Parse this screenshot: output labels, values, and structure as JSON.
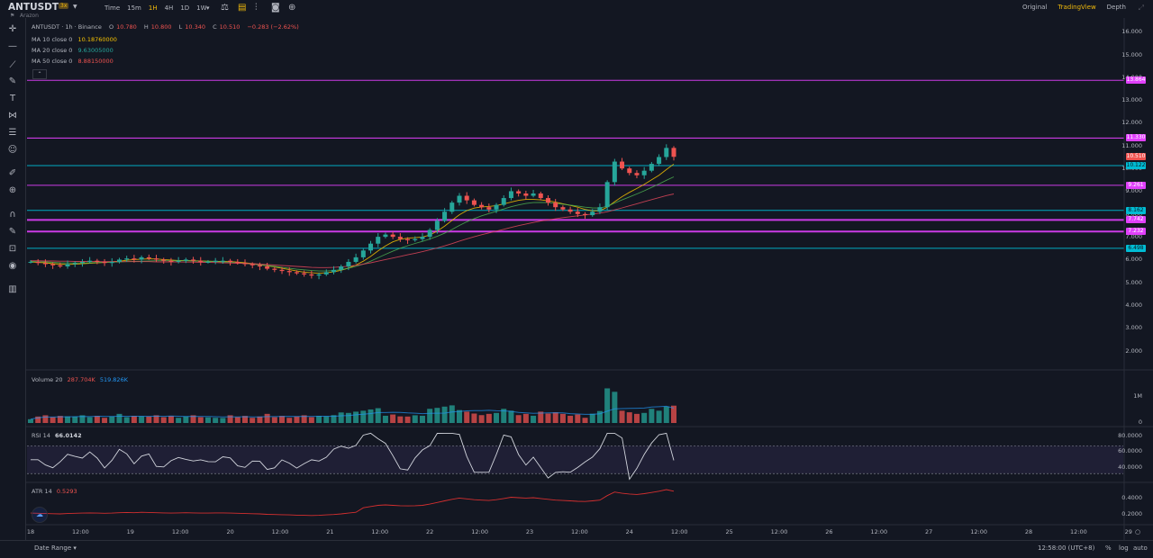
{
  "header": {
    "symbol": "ANTUSDT",
    "badge": "3x",
    "exchange": "Arazon",
    "intervals": [
      "Time",
      "15m",
      "1H",
      "4H",
      "1D",
      "1W"
    ],
    "active_interval": "1H",
    "views": [
      "Original",
      "TradingView",
      "Depth"
    ],
    "active_view": "TradingView"
  },
  "legend": {
    "title": "ANTUSDT · 1h · Binance",
    "o_label": "O",
    "o": "10.780",
    "h_label": "H",
    "h": "10.800",
    "l_label": "L",
    "l": "10.340",
    "c_label": "C",
    "c": "10.510",
    "change": "−0.283 (−2.62%)",
    "ma10_label": "MA 10 close 0",
    "ma10": "10.18760000",
    "ma20_label": "MA 20 close 0",
    "ma20": "9.63005000",
    "ma50_label": "MA 50 close 0",
    "ma50": "8.88150000"
  },
  "colors": {
    "up": "#26a69a",
    "down": "#ef5350",
    "ma10": "#f7c300",
    "ma20": "#d1d4dc",
    "ma50": "#e0475b",
    "magenta": "#e040fb",
    "cyan": "#00bcd4",
    "rsi": "#d1d4dc",
    "atr": "#d32f2f"
  },
  "price_axis": [
    "16.000",
    "15.000",
    "14.000",
    "13.000",
    "12.000",
    "11.000",
    "10.000",
    "9.000",
    "8.000",
    "7.000",
    "6.000",
    "5.000",
    "4.000",
    "3.000",
    "2.000"
  ],
  "price_tags": [
    {
      "value": "13.864",
      "kind": "magenta"
    },
    {
      "value": "11.330",
      "kind": "magenta"
    },
    {
      "value": "10.510",
      "kind": "down"
    },
    {
      "value": "10.122",
      "kind": "cyan"
    },
    {
      "value": "9.261",
      "kind": "magenta"
    },
    {
      "value": "8.162",
      "kind": "cyan"
    },
    {
      "value": "7.742",
      "kind": "magenta"
    },
    {
      "value": "7.232",
      "kind": "magenta"
    },
    {
      "value": "6.498",
      "kind": "cyan"
    }
  ],
  "volume": {
    "label": "Volume 20",
    "v1": "287.704K",
    "v2": "519.826K",
    "axis": [
      "1M",
      "0"
    ]
  },
  "rsi": {
    "label": "RSI 14",
    "value": "66.0142",
    "axis": [
      "80.0000",
      "60.0000",
      "40.0000"
    ]
  },
  "atr": {
    "label": "ATR 14",
    "value": "0.5293",
    "axis": [
      "0.4000",
      "0.2000"
    ]
  },
  "time_axis": [
    "18",
    "12:00",
    "19",
    "12:00",
    "20",
    "12:00",
    "21",
    "12:00",
    "22",
    "12:00",
    "23",
    "12:00",
    "24",
    "12:00",
    "25",
    "12:00",
    "26",
    "12:00",
    "27",
    "12:00",
    "28",
    "12:00",
    "29"
  ],
  "footer": {
    "date_range": "Date Range",
    "clock": "12:58:00 (UTC+8)",
    "pct": "%",
    "log": "log",
    "auto": "auto"
  },
  "chart_data": {
    "type": "candlestick",
    "symbol": "ANTUSDT",
    "interval": "1h",
    "ylim": [
      1.2,
      16.6
    ],
    "horizontal_levels": [
      13.864,
      11.33,
      10.122,
      9.261,
      8.162,
      7.742,
      7.232,
      6.498
    ],
    "close_series": [
      5.9,
      5.85,
      5.8,
      5.75,
      5.7,
      5.8,
      5.85,
      5.9,
      5.95,
      5.9,
      5.85,
      5.9,
      6.0,
      6.05,
      6.0,
      6.1,
      6.05,
      6.0,
      5.95,
      5.9,
      5.95,
      6.0,
      5.95,
      5.9,
      5.9,
      5.95,
      5.95,
      5.9,
      5.85,
      5.8,
      5.75,
      5.7,
      5.6,
      5.55,
      5.5,
      5.45,
      5.4,
      5.35,
      5.3,
      5.35,
      5.45,
      5.55,
      5.7,
      5.9,
      6.1,
      6.4,
      6.7,
      7.0,
      7.1,
      7.0,
      6.9,
      6.85,
      6.9,
      7.0,
      7.3,
      7.7,
      8.1,
      8.5,
      8.8,
      8.6,
      8.4,
      8.3,
      8.2,
      8.4,
      8.7,
      9.0,
      8.9,
      8.8,
      8.9,
      8.7,
      8.5,
      8.3,
      8.2,
      8.1,
      8.0,
      7.95,
      8.1,
      8.3,
      9.4,
      10.3,
      10.0,
      9.8,
      9.7,
      9.9,
      10.2,
      10.5,
      10.9,
      10.51
    ],
    "ma10_series": [
      5.9,
      5.88,
      5.86,
      5.82,
      5.8,
      5.79,
      5.8,
      5.82,
      5.84,
      5.86,
      5.88,
      5.9,
      5.93,
      5.97,
      6.0,
      6.02,
      6.03,
      6.03,
      6.0,
      5.98,
      5.96,
      5.96,
      5.95,
      5.94,
      5.93,
      5.92,
      5.92,
      5.91,
      5.89,
      5.86,
      5.82,
      5.78,
      5.73,
      5.68,
      5.62,
      5.56,
      5.5,
      5.45,
      5.42,
      5.4,
      5.42,
      5.46,
      5.53,
      5.63,
      5.76,
      5.93,
      6.14,
      6.38,
      6.6,
      6.78,
      6.89,
      6.94,
      6.96,
      6.99,
      7.08,
      7.25,
      7.47,
      7.72,
      7.97,
      8.15,
      8.26,
      8.31,
      8.33,
      8.37,
      8.44,
      8.52,
      8.6,
      8.64,
      8.64,
      8.62,
      8.58,
      8.52,
      8.45,
      8.38,
      8.3,
      8.2,
      8.14,
      8.14,
      8.3,
      8.54,
      8.76,
      8.95,
      9.12,
      9.3,
      9.5,
      9.7,
      9.95,
      10.19
    ],
    "ma20_series": [
      5.92,
      5.91,
      5.9,
      5.88,
      5.86,
      5.85,
      5.85,
      5.85,
      5.86,
      5.87,
      5.88,
      5.89,
      5.9,
      5.91,
      5.92,
      5.93,
      5.94,
      5.95,
      5.95,
      5.95,
      5.95,
      5.95,
      5.94,
      5.93,
      5.92,
      5.91,
      5.9,
      5.88,
      5.86,
      5.83,
      5.8,
      5.77,
      5.74,
      5.7,
      5.66,
      5.62,
      5.58,
      5.55,
      5.52,
      5.5,
      5.5,
      5.52,
      5.56,
      5.62,
      5.7,
      5.8,
      5.93,
      6.08,
      6.23,
      6.37,
      6.5,
      6.61,
      6.71,
      6.8,
      6.9,
      7.02,
      7.16,
      7.32,
      7.5,
      7.66,
      7.8,
      7.92,
      8.02,
      8.12,
      8.22,
      8.32,
      8.4,
      8.46,
      8.5,
      8.51,
      8.5,
      8.47,
      8.43,
      8.39,
      8.35,
      8.3,
      8.27,
      8.26,
      8.34,
      8.48,
      8.62,
      8.75,
      8.88,
      9.02,
      9.17,
      9.32,
      9.48,
      9.63
    ],
    "ma50_series": [
      5.95,
      5.95,
      5.94,
      5.94,
      5.93,
      5.93,
      5.92,
      5.92,
      5.92,
      5.91,
      5.91,
      5.91,
      5.91,
      5.91,
      5.91,
      5.91,
      5.91,
      5.9,
      5.9,
      5.9,
      5.9,
      5.89,
      5.89,
      5.88,
      5.88,
      5.87,
      5.86,
      5.85,
      5.84,
      5.83,
      5.82,
      5.8,
      5.78,
      5.76,
      5.74,
      5.72,
      5.7,
      5.68,
      5.66,
      5.65,
      5.65,
      5.66,
      5.68,
      5.71,
      5.75,
      5.8,
      5.86,
      5.93,
      6.0,
      6.07,
      6.14,
      6.21,
      6.28,
      6.35,
      6.43,
      6.51,
      6.6,
      6.7,
      6.81,
      6.91,
      7.0,
      7.09,
      7.17,
      7.25,
      7.33,
      7.41,
      7.49,
      7.56,
      7.63,
      7.69,
      7.74,
      7.79,
      7.84,
      7.88,
      7.92,
      7.96,
      8.0,
      8.04,
      8.1,
      8.18,
      8.27,
      8.36,
      8.45,
      8.54,
      8.63,
      8.72,
      8.81,
      8.88
    ]
  }
}
